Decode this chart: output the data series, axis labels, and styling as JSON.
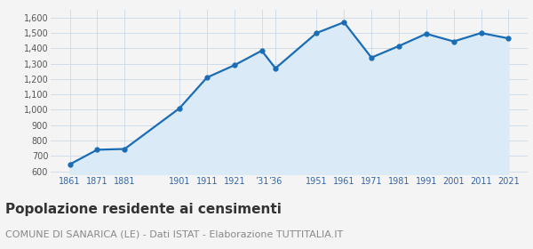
{
  "years": [
    1861,
    1871,
    1881,
    1901,
    1911,
    1921,
    1931,
    1936,
    1951,
    1961,
    1971,
    1981,
    1991,
    2001,
    2011,
    2021
  ],
  "population": [
    645,
    740,
    745,
    1010,
    1210,
    1290,
    1385,
    1270,
    1500,
    1570,
    1340,
    1415,
    1495,
    1445,
    1500,
    1465
  ],
  "x_tick_years": [
    1861,
    1871,
    1881,
    1901,
    1911,
    1921,
    1931,
    1936,
    1951,
    1961,
    1971,
    1981,
    1991,
    2001,
    2011,
    2021
  ],
  "x_tick_labels": [
    "1861",
    "1871",
    "1881",
    "1901",
    "1911",
    "1921",
    "’31",
    "’36",
    "1951",
    "1961",
    "1971",
    "1981",
    "1991",
    "2001",
    "2011",
    "2021"
  ],
  "ylim": [
    580,
    1650
  ],
  "yticks": [
    600,
    700,
    800,
    900,
    1000,
    1100,
    1200,
    1300,
    1400,
    1500,
    1600
  ],
  "xlim": [
    1854,
    2028
  ],
  "line_color": "#1a6db5",
  "fill_color": "#daeaf7",
  "marker_color": "#1a6db5",
  "grid_color": "#c8d8e8",
  "background_color": "#f4f4f4",
  "plot_bg_color": "#f4f4f4",
  "title": "Popolazione residente ai censimenti",
  "subtitle": "COMUNE DI SANARICA (LE) - Dati ISTAT - Elaborazione TUTTITALIA.IT",
  "title_fontsize": 11,
  "subtitle_fontsize": 8
}
